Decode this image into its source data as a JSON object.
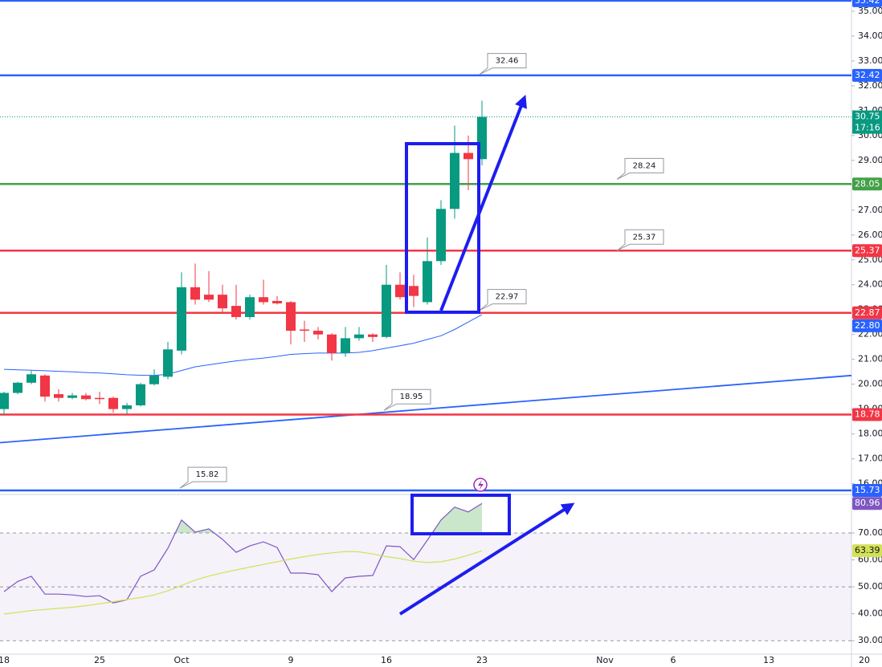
{
  "chart_data": [
    {
      "type": "candlestick",
      "categories": [
        "18",
        null,
        null,
        null,
        null,
        null,
        null,
        "25",
        null,
        null,
        null,
        null,
        null,
        "Oct",
        null,
        null,
        null,
        null,
        null,
        null,
        null,
        "9",
        null,
        null,
        null,
        null,
        null,
        null,
        "16",
        null,
        null,
        null,
        null,
        null,
        null,
        "23",
        null,
        null,
        null,
        null,
        null,
        null,
        null,
        null,
        "Nov",
        null,
        null,
        null,
        null,
        "6",
        null,
        null,
        null,
        null,
        null,
        null,
        "13",
        null,
        null,
        null,
        null,
        null,
        null,
        "20"
      ],
      "open": [
        19.0,
        19.65,
        20.06,
        20.35,
        19.6,
        19.45,
        19.55,
        19.45,
        19.45,
        19.0,
        19.15,
        20.0,
        20.3,
        21.35,
        23.9,
        23.6,
        23.6,
        23.15,
        22.7,
        23.5,
        23.35,
        23.3,
        22.2,
        22.15,
        22.0,
        21.25,
        21.85,
        22.0,
        21.9,
        24.0,
        23.95,
        23.3,
        24.95,
        27.05,
        29.3,
        29.05,
        null,
        null,
        null,
        null,
        null,
        null,
        null,
        null,
        null,
        null,
        null,
        null,
        null,
        null,
        null,
        null,
        null,
        null,
        null,
        null,
        null,
        null,
        null,
        null,
        null,
        null,
        null,
        null
      ],
      "high": [
        19.7,
        20.1,
        20.55,
        20.4,
        19.8,
        19.65,
        19.65,
        19.7,
        19.5,
        19.25,
        20.05,
        20.6,
        21.7,
        24.5,
        24.85,
        24.55,
        24.0,
        24.0,
        23.6,
        24.2,
        23.55,
        23.35,
        22.55,
        22.3,
        22.05,
        22.3,
        22.3,
        22.05,
        24.8,
        24.5,
        24.4,
        25.9,
        27.4,
        30.4,
        30.0,
        31.4,
        null,
        null,
        null,
        null,
        null,
        null,
        null,
        null,
        null,
        null,
        null,
        null,
        null,
        null,
        null,
        null,
        null,
        null,
        null,
        null,
        null,
        null,
        null,
        null,
        null,
        null,
        null,
        null
      ],
      "low": [
        18.75,
        19.6,
        20.0,
        19.3,
        19.3,
        19.4,
        19.35,
        19.2,
        18.85,
        18.8,
        19.1,
        19.95,
        20.2,
        21.2,
        23.2,
        23.3,
        22.85,
        22.6,
        22.6,
        23.2,
        23.2,
        21.6,
        21.7,
        21.8,
        20.95,
        21.1,
        21.75,
        21.7,
        21.85,
        23.4,
        23.1,
        23.2,
        24.8,
        26.65,
        27.8,
        28.8,
        null,
        null,
        null,
        null,
        null,
        null,
        null,
        null,
        null,
        null,
        null,
        null,
        null,
        null,
        null,
        null,
        null,
        null,
        null,
        null,
        null,
        null,
        null,
        null,
        null,
        null,
        null,
        null
      ],
      "close": [
        19.65,
        20.06,
        20.4,
        19.5,
        19.45,
        19.55,
        19.4,
        19.4,
        19.0,
        19.15,
        20.0,
        20.35,
        21.4,
        23.9,
        23.4,
        23.4,
        23.05,
        22.7,
        23.5,
        23.3,
        23.25,
        22.15,
        22.15,
        22.0,
        21.25,
        21.85,
        22.0,
        21.9,
        24.0,
        23.5,
        23.55,
        24.95,
        27.05,
        29.3,
        29.05,
        30.75,
        null,
        null,
        null,
        null,
        null,
        null,
        null,
        null,
        null,
        null,
        null,
        null,
        null,
        null,
        null,
        null,
        null,
        null,
        null,
        null,
        null,
        null,
        null,
        null,
        null,
        null,
        null,
        null
      ],
      "up_color": "#089981",
      "down_color": "#f23645",
      "countdown": "17:16",
      "series": [
        {
          "color": "#2962ff",
          "last_label": "22.80",
          "values": [
            20.6,
            20.58,
            20.56,
            20.54,
            20.52,
            20.5,
            20.47,
            20.45,
            20.42,
            20.38,
            20.36,
            20.35,
            20.4,
            20.55,
            20.7,
            20.78,
            20.86,
            20.94,
            21.0,
            21.05,
            21.12,
            21.2,
            21.23,
            21.25,
            21.25,
            21.25,
            21.28,
            21.35,
            21.45,
            21.55,
            21.65,
            21.8,
            21.95,
            22.2,
            22.5,
            22.8,
            null,
            null,
            null,
            null,
            null,
            null,
            null,
            null,
            null,
            null,
            null,
            null,
            null,
            null,
            null,
            null,
            null,
            null,
            null,
            null,
            null,
            null,
            null,
            null,
            null,
            null,
            null,
            null
          ]
        }
      ],
      "levels": [
        {
          "value": 35.42,
          "color": "#2962ff"
        },
        {
          "value": 32.42,
          "color": "#2962ff"
        },
        {
          "value": 28.05,
          "color": "#43a047"
        },
        {
          "value": 25.37,
          "color": "#f23645"
        },
        {
          "value": 22.87,
          "color": "#f23645"
        },
        {
          "value": 18.78,
          "color": "#f23645"
        },
        {
          "value": 15.73,
          "color": "#2962ff"
        }
      ],
      "trendline": {
        "color": "#2962ff",
        "values": [
          17.65,
          20.35
        ]
      },
      "annotations": [
        {
          "value": 32.46
        },
        {
          "value": 28.24
        },
        {
          "value": 25.37
        },
        {
          "value": 22.97
        },
        {
          "value": 18.95
        },
        {
          "value": 15.82
        }
      ],
      "ylim": [
        15.6,
        35.45
      ],
      "yticks": [
        {
          "value": 16,
          "label": "16.00"
        },
        {
          "value": 17,
          "label": "17.00"
        },
        {
          "value": 18,
          "label": "18.00"
        },
        {
          "value": 19,
          "label": "19.00"
        },
        {
          "value": 20,
          "label": "20.00"
        },
        {
          "value": 21,
          "label": "21.00"
        },
        {
          "value": 22,
          "label": "22.00"
        },
        {
          "value": 23,
          "label": "23.00"
        },
        {
          "value": 24,
          "label": "24.00"
        },
        {
          "value": 25,
          "label": "25.00"
        },
        {
          "value": 26,
          "label": "26.00"
        },
        {
          "value": 27,
          "label": "27.00"
        },
        {
          "value": 28,
          "label": "28.00"
        },
        {
          "value": 29,
          "label": "29.00"
        },
        {
          "value": 30,
          "label": "30.00"
        },
        {
          "value": 31,
          "label": "31.00"
        },
        {
          "value": 32,
          "label": "32.00"
        },
        {
          "value": 33,
          "label": "33.00"
        },
        {
          "value": 34,
          "label": "34.00"
        },
        {
          "value": 35,
          "label": "35.00"
        }
      ]
    },
    {
      "type": "line",
      "series": [
        {
          "color": "#7e57c2",
          "values": [
            48.2,
            52,
            53.9,
            47.3,
            47.3,
            47,
            46.4,
            46.7,
            44,
            45.2,
            53.9,
            56.3,
            64.3,
            74.8,
            70.3,
            71.5,
            67.6,
            62.8,
            65.2,
            66.7,
            64.6,
            55.1,
            55.1,
            54.5,
            48.2,
            53.3,
            53.9,
            54.2,
            65.2,
            64.9,
            60.1,
            67.3,
            74.8,
            79.6,
            77.8,
            80.96
          ]
        },
        {
          "color": "#d4e157",
          "values": [
            39.9,
            40.5,
            41.2,
            41.6,
            42,
            42.4,
            43,
            43.7,
            44.5,
            45.3,
            46,
            47,
            48.5,
            50.5,
            52.5,
            54,
            55.2,
            56.3,
            57.3,
            58.3,
            59.3,
            60.3,
            61.2,
            62,
            62.6,
            63.1,
            63,
            62.2,
            61.2,
            60.5,
            59.5,
            59,
            59.3,
            60.3,
            61.7,
            63.39
          ]
        }
      ],
      "band": [
        30,
        70
      ],
      "levels": [
        70,
        50,
        30
      ],
      "ylim": [
        25,
        84
      ],
      "yticks": [
        {
          "value": 30,
          "label": "30.00"
        },
        {
          "value": 40,
          "label": "40.00"
        },
        {
          "value": 50,
          "label": "50.00"
        },
        {
          "value": 60,
          "label": "60.00"
        },
        {
          "value": 70,
          "label": "70.00"
        }
      ]
    }
  ]
}
